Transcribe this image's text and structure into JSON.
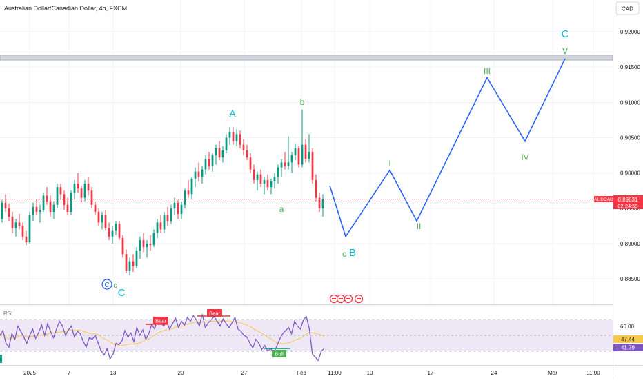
{
  "header": {
    "title": "Australian Dollar/Canadian Dollar, 4h, FXCM",
    "currency": "CAD"
  },
  "colors": {
    "bull": "#089981",
    "bear": "#f23645",
    "wave": "#2962ff",
    "cyan_label": "#00bcd4",
    "green_label": "#4caf50",
    "rsi_line": "#7e57c2",
    "rsi_ma": "#f7c948",
    "rsi_bg": "#ede7f6",
    "grid": "#f0f3fa"
  },
  "chart_data": [
    {
      "type": "candlestick",
      "symbol": "AUDCAD",
      "timeframe": "4h",
      "y_ticks": [
        "0.92000",
        "0.91500",
        "0.91000",
        "0.90500",
        "0.90000",
        "0.89500",
        "0.89000",
        "0.88500"
      ],
      "ylim": [
        0.8815,
        0.9245
      ],
      "x_ticks": [
        "2025",
        "7",
        "13",
        "20",
        "27",
        "Feb",
        "11:00",
        "10",
        "17",
        "24",
        "Mar",
        "11:00"
      ],
      "last_price": {
        "label": "AUDCAD",
        "value": "0.89631",
        "countdown": "02:24:59"
      },
      "resistance_zone": [
        0.916,
        0.9167
      ],
      "candles": [
        [
          0.8935,
          0.8962,
          0.893,
          0.8958
        ],
        [
          0.8958,
          0.897,
          0.8945,
          0.895
        ],
        [
          0.895,
          0.8957,
          0.8932,
          0.8938
        ],
        [
          0.8938,
          0.8945,
          0.8915,
          0.8922
        ],
        [
          0.8922,
          0.8935,
          0.891,
          0.893
        ],
        [
          0.893,
          0.8942,
          0.892,
          0.8925
        ],
        [
          0.8925,
          0.893,
          0.8905,
          0.891
        ],
        [
          0.891,
          0.8918,
          0.8898,
          0.8902
        ],
        [
          0.8902,
          0.8945,
          0.89,
          0.894
        ],
        [
          0.894,
          0.8958,
          0.8932,
          0.8952
        ],
        [
          0.8952,
          0.8963,
          0.894,
          0.8945
        ],
        [
          0.8945,
          0.8955,
          0.893,
          0.8948
        ],
        [
          0.8948,
          0.8972,
          0.8945,
          0.8968
        ],
        [
          0.8968,
          0.898,
          0.8955,
          0.896
        ],
        [
          0.896,
          0.8968,
          0.8938,
          0.8945
        ],
        [
          0.8945,
          0.896,
          0.8935,
          0.8955
        ],
        [
          0.8955,
          0.8985,
          0.895,
          0.898
        ],
        [
          0.898,
          0.8985,
          0.8962,
          0.897
        ],
        [
          0.897,
          0.8975,
          0.8948,
          0.8955
        ],
        [
          0.8955,
          0.8965,
          0.894,
          0.8945
        ],
        [
          0.8945,
          0.8975,
          0.894,
          0.8972
        ],
        [
          0.8972,
          0.899,
          0.8962,
          0.8985
        ],
        [
          0.8985,
          0.9,
          0.8972,
          0.8978
        ],
        [
          0.8978,
          0.8982,
          0.8958,
          0.8965
        ],
        [
          0.8965,
          0.899,
          0.896,
          0.8985
        ],
        [
          0.8985,
          0.8995,
          0.8968,
          0.8975
        ],
        [
          0.8975,
          0.898,
          0.895,
          0.8955
        ],
        [
          0.8955,
          0.896,
          0.894,
          0.8945
        ],
        [
          0.8945,
          0.895,
          0.8925,
          0.893
        ],
        [
          0.893,
          0.8945,
          0.892,
          0.894
        ],
        [
          0.894,
          0.8948,
          0.8918,
          0.8922
        ],
        [
          0.8922,
          0.893,
          0.8905,
          0.891
        ],
        [
          0.891,
          0.8925,
          0.89,
          0.8918
        ],
        [
          0.8918,
          0.8932,
          0.8912,
          0.8928
        ],
        [
          0.8928,
          0.8932,
          0.8905,
          0.8908
        ],
        [
          0.8908,
          0.8912,
          0.888,
          0.8885
        ],
        [
          0.8885,
          0.8892,
          0.8858,
          0.8862
        ],
        [
          0.8862,
          0.888,
          0.8855,
          0.8875
        ],
        [
          0.8875,
          0.8885,
          0.886,
          0.8868
        ],
        [
          0.8868,
          0.8895,
          0.8865,
          0.889
        ],
        [
          0.889,
          0.891,
          0.8878,
          0.8905
        ],
        [
          0.8905,
          0.8915,
          0.8888,
          0.8895
        ],
        [
          0.8895,
          0.8905,
          0.888,
          0.89
        ],
        [
          0.89,
          0.8912,
          0.889,
          0.8898
        ],
        [
          0.8898,
          0.892,
          0.8895,
          0.8915
        ],
        [
          0.8915,
          0.8935,
          0.8908,
          0.893
        ],
        [
          0.893,
          0.894,
          0.8915,
          0.892
        ],
        [
          0.892,
          0.8945,
          0.8915,
          0.894
        ],
        [
          0.894,
          0.8952,
          0.8925,
          0.8932
        ],
        [
          0.8932,
          0.8955,
          0.8928,
          0.895
        ],
        [
          0.895,
          0.8965,
          0.894,
          0.8958
        ],
        [
          0.8958,
          0.8962,
          0.8935,
          0.8942
        ],
        [
          0.8942,
          0.896,
          0.8935,
          0.8955
        ],
        [
          0.8955,
          0.8978,
          0.895,
          0.8975
        ],
        [
          0.8975,
          0.899,
          0.8965,
          0.897
        ],
        [
          0.897,
          0.8995,
          0.8962,
          0.8992
        ],
        [
          0.8992,
          0.9008,
          0.898,
          0.9002
        ],
        [
          0.9002,
          0.9015,
          0.8988,
          0.8995
        ],
        [
          0.8995,
          0.901,
          0.8985,
          0.9005
        ],
        [
          0.9005,
          0.9025,
          0.8998,
          0.902
        ],
        [
          0.902,
          0.903,
          0.9005,
          0.901
        ],
        [
          0.901,
          0.9028,
          0.9002,
          0.9025
        ],
        [
          0.9025,
          0.904,
          0.9012,
          0.9035
        ],
        [
          0.9035,
          0.9045,
          0.9018,
          0.9022
        ],
        [
          0.9022,
          0.9038,
          0.9015,
          0.9032
        ],
        [
          0.9032,
          0.9055,
          0.9028,
          0.905
        ],
        [
          0.905,
          0.9065,
          0.904,
          0.9058
        ],
        [
          0.9058,
          0.9065,
          0.904,
          0.9045
        ],
        [
          0.9045,
          0.9062,
          0.9038,
          0.9055
        ],
        [
          0.9055,
          0.906,
          0.9035,
          0.904
        ],
        [
          0.904,
          0.9048,
          0.9025,
          0.9032
        ],
        [
          0.9032,
          0.904,
          0.9018,
          0.9022
        ],
        [
          0.9022,
          0.9028,
          0.9,
          0.9005
        ],
        [
          0.9005,
          0.9012,
          0.8985,
          0.899
        ],
        [
          0.899,
          0.9002,
          0.8975,
          0.8998
        ],
        [
          0.8998,
          0.9005,
          0.898,
          0.8985
        ],
        [
          0.8985,
          0.8995,
          0.897,
          0.899
        ],
        [
          0.899,
          0.8998,
          0.8975,
          0.898
        ],
        [
          0.898,
          0.8992,
          0.897,
          0.8988
        ],
        [
          0.8988,
          0.9,
          0.8978,
          0.8995
        ],
        [
          0.8995,
          0.9012,
          0.8985,
          0.9008
        ],
        [
          0.9008,
          0.902,
          0.8995,
          0.9015
        ],
        [
          0.9015,
          0.903,
          0.9005,
          0.901
        ],
        [
          0.901,
          0.9052,
          0.9005,
          0.9015
        ],
        [
          0.9015,
          0.903,
          0.9,
          0.9025
        ],
        [
          0.9025,
          0.9042,
          0.9018,
          0.9035
        ],
        [
          0.9035,
          0.9038,
          0.9008,
          0.9012
        ],
        [
          0.9012,
          0.909,
          0.9008,
          0.904
        ],
        [
          0.904,
          0.9048,
          0.9015,
          0.902
        ],
        [
          0.902,
          0.9055,
          0.9015,
          0.903
        ],
        [
          0.903,
          0.9035,
          0.8985,
          0.899
        ],
        [
          0.899,
          0.8998,
          0.896,
          0.8965
        ],
        [
          0.8965,
          0.8972,
          0.8945,
          0.895
        ],
        [
          0.895,
          0.897,
          0.8938,
          0.8963
        ]
      ],
      "wave_path": [
        {
          "time": "Feb 2 12:00",
          "value": 0.8982
        },
        {
          "time": "Feb 5",
          "value": 0.891
        },
        {
          "time": "Feb 12",
          "value": 0.9004
        },
        {
          "time": "Feb 15",
          "value": 0.8932
        },
        {
          "time": "Feb 23",
          "value": 0.9135
        },
        {
          "time": "Feb 28",
          "value": 0.9045
        },
        {
          "time": "Mar 4",
          "value": 0.9162
        }
      ],
      "wave_labels": {
        "cyan": [
          "A",
          "B",
          "C",
          "C"
        ],
        "green": [
          "b",
          "a",
          "c",
          "c",
          "I",
          "II",
          "III",
          "IV",
          "V"
        ],
        "circled": "C"
      }
    },
    {
      "type": "line",
      "title": "RSI",
      "y_ticks": [
        "60.00"
      ],
      "ylim": [
        13,
        87
      ],
      "current_values": {
        "ma": "47.44",
        "rsi": "41.79"
      },
      "markers": [
        "Bear",
        "Bear",
        "Bull"
      ],
      "series": [
        {
          "name": "RSI",
          "values": [
            50,
            56,
            40,
            35,
            52,
            45,
            62,
            55,
            48,
            40,
            50,
            58,
            46,
            54,
            63,
            50,
            65,
            55,
            47,
            58,
            68,
            62,
            50,
            57,
            62,
            48,
            55,
            52,
            42,
            35,
            47,
            45,
            50,
            40,
            30,
            25,
            33,
            20,
            26,
            40,
            38,
            43,
            56,
            48,
            53,
            42,
            60,
            50,
            57,
            45,
            52,
            64,
            58,
            72,
            66,
            62,
            68,
            58,
            65,
            72,
            60,
            68,
            63,
            73,
            68,
            75,
            70,
            62,
            77,
            60,
            66,
            70,
            74,
            68,
            62,
            71,
            65,
            60,
            66,
            73,
            58,
            55,
            50,
            48,
            40,
            34,
            45,
            40,
            32,
            37,
            30,
            33,
            28,
            36,
            45,
            52,
            56,
            60,
            52,
            68,
            62,
            58,
            70,
            74,
            58,
            26,
            22,
            18,
            30,
            33
          ]
        }
      ]
    }
  ]
}
